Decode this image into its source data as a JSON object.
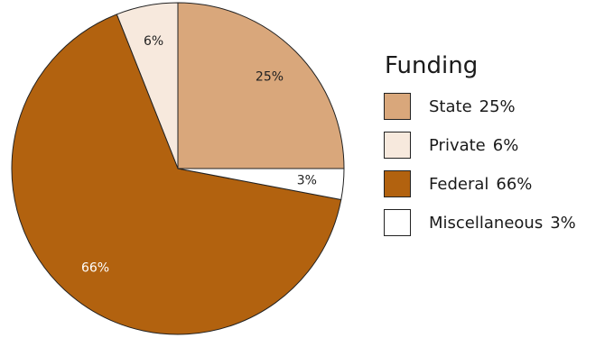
{
  "chart_data": {
    "type": "pie",
    "legend_title": "Funding",
    "legend_position": "right",
    "start_angle_deg": 0,
    "slices": [
      {
        "label": "State",
        "value": 25,
        "data_label": "25%",
        "color": "#d9a77b"
      },
      {
        "label": "Private",
        "value": 6,
        "data_label": "6%",
        "color": "#f7e9dd"
      },
      {
        "label": "Federal",
        "value": 66,
        "data_label": "66%",
        "color": "#b2620f"
      },
      {
        "label": "Miscellaneous",
        "value": 3,
        "data_label": "3%",
        "color": "#ffffff"
      }
    ],
    "draw_order": [
      1,
      2,
      0,
      3
    ]
  },
  "legend": {
    "title": "Funding",
    "items": [
      {
        "label": "State",
        "pct": "25%",
        "color": "#d9a77b"
      },
      {
        "label": "Private",
        "pct": "6%",
        "color": "#f7e9dd"
      },
      {
        "label": "Federal",
        "pct": "66%",
        "color": "#b2620f"
      },
      {
        "label": "Miscellaneous",
        "pct": "3%",
        "color": "#ffffff"
      }
    ]
  }
}
